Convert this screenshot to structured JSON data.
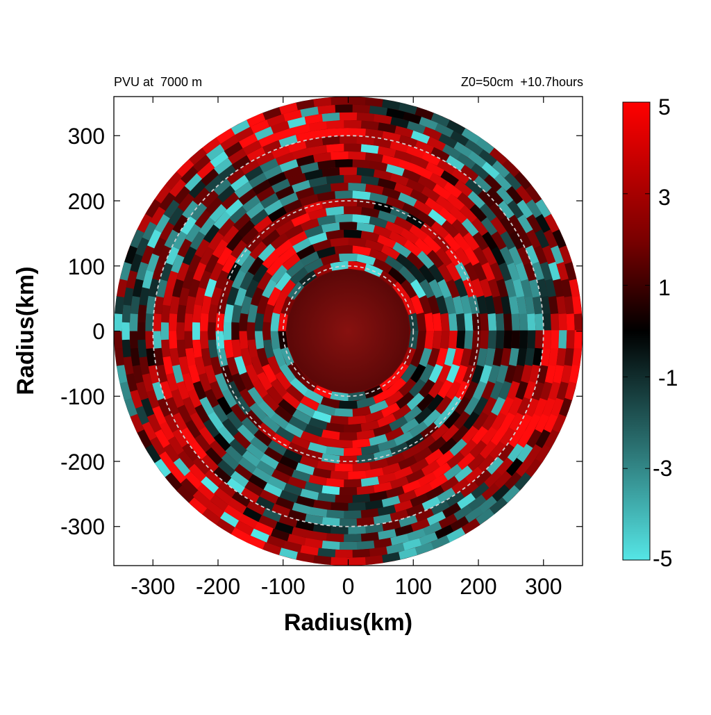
{
  "title_left": "PVU at  7000 m",
  "title_right": "Z0=50cm  +10.7hours",
  "chart_data": {
    "type": "heatmap",
    "title": "PVU at  7000 m",
    "subtitle": "Z0=50cm  +10.7hours",
    "xlabel": "Radius(km)",
    "ylabel": "Radius(km)",
    "xlim": [
      -360,
      360
    ],
    "ylim": [
      -360,
      360
    ],
    "xticks": [
      -300,
      -200,
      -100,
      0,
      100,
      200,
      300
    ],
    "yticks": [
      300,
      200,
      100,
      0,
      -100,
      -200,
      -300
    ],
    "xtick_labels": [
      "-300",
      "-200",
      "-100",
      "0",
      "100",
      "200",
      "300"
    ],
    "ytick_labels": [
      "300",
      "200",
      "100",
      "0",
      "-100",
      "-200",
      "-300"
    ],
    "domain_radius_km": 360,
    "reference_circles_km": [
      100,
      200,
      300
    ],
    "colorbar": {
      "min": -5,
      "max": 5,
      "ticks": [
        5,
        3,
        1,
        -1,
        -3,
        -5
      ],
      "tick_labels": [
        "5",
        "3",
        "1",
        "-1",
        "-3",
        "-5"
      ],
      "colors": {
        "low": "#55e6e6",
        "mid": "#000000",
        "high": "#ff0000"
      }
    },
    "field_description": "Potential vorticity in PVU on a polar domain; mostly positive (red) with a smooth weakly positive core inside r=100 km, banded mixture of strong positive and negative (cyan) anomalies between 100 and 200 km, and spiral bands of alternating sign outside 200 km."
  }
}
